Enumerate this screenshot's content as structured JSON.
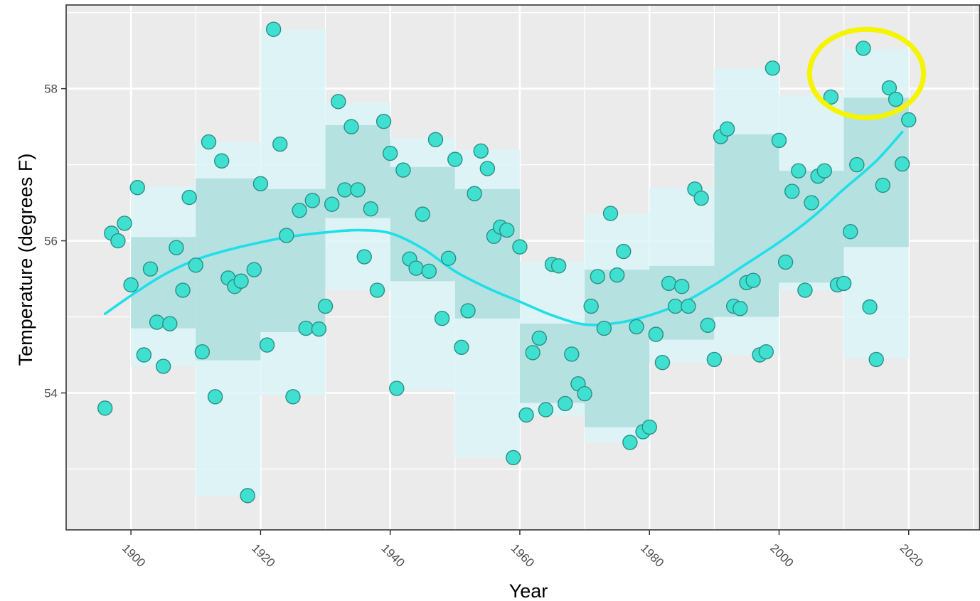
{
  "chart_data": {
    "type": "scatter",
    "xlabel": "Year",
    "ylabel": "Temperature (degrees F)",
    "xlim": [
      1890,
      2031
    ],
    "ylim": [
      52.2,
      59.1
    ],
    "x_ticks": [
      1900,
      1920,
      1940,
      1960,
      1980,
      2000,
      2020
    ],
    "y_ticks": [
      54,
      56,
      58
    ],
    "grid": true,
    "panel_background": "#ebebeb",
    "colors": {
      "points": "#40e0d0",
      "point_outline": "#2a8f87",
      "trend": "#1fdfe8",
      "outer_band": "#dbf5f7",
      "inner_band": "#aedddd",
      "highlight": "#f5f500"
    },
    "decade_bands": [
      {
        "x0": 1900,
        "x1": 1910,
        "outer": [
          54.35,
          56.72
        ],
        "inner": [
          54.85,
          56.05
        ]
      },
      {
        "x0": 1910,
        "x1": 1920,
        "outer": [
          52.65,
          57.3
        ],
        "inner": [
          54.43,
          56.82
        ]
      },
      {
        "x0": 1920,
        "x1": 1930,
        "outer": [
          53.97,
          58.78
        ],
        "inner": [
          54.8,
          56.68
        ]
      },
      {
        "x0": 1930,
        "x1": 1940,
        "outer": [
          55.35,
          57.82
        ],
        "inner": [
          56.3,
          57.52
        ]
      },
      {
        "x0": 1940,
        "x1": 1950,
        "outer": [
          54.05,
          57.35
        ],
        "inner": [
          55.47,
          56.97
        ]
      },
      {
        "x0": 1950,
        "x1": 1960,
        "outer": [
          53.15,
          57.2
        ],
        "inner": [
          54.98,
          56.68
        ]
      },
      {
        "x0": 1960,
        "x1": 1970,
        "outer": [
          53.7,
          55.72
        ],
        "inner": [
          53.87,
          54.91
        ]
      },
      {
        "x0": 1970,
        "x1": 1980,
        "outer": [
          53.35,
          56.35
        ],
        "inner": [
          53.55,
          55.62
        ]
      },
      {
        "x0": 1980,
        "x1": 1990,
        "outer": [
          54.4,
          56.7
        ],
        "inner": [
          54.7,
          55.67
        ]
      },
      {
        "x0": 1990,
        "x1": 2000,
        "outer": [
          54.5,
          58.27
        ],
        "inner": [
          55.0,
          57.4
        ]
      },
      {
        "x0": 2000,
        "x1": 2010,
        "outer": [
          55.35,
          57.92
        ],
        "inner": [
          55.45,
          56.92
        ]
      },
      {
        "x0": 2010,
        "x1": 2020,
        "outer": [
          54.45,
          58.52
        ],
        "inner": [
          55.92,
          57.88
        ]
      }
    ],
    "points": [
      [
        1896,
        53.8
      ],
      [
        1897,
        56.1
      ],
      [
        1898,
        56.0
      ],
      [
        1899,
        56.23
      ],
      [
        1900,
        55.42
      ],
      [
        1901,
        56.7
      ],
      [
        1902,
        54.5
      ],
      [
        1903,
        55.63
      ],
      [
        1904,
        54.93
      ],
      [
        1905,
        54.35
      ],
      [
        1906,
        54.91
      ],
      [
        1907,
        55.91
      ],
      [
        1908,
        55.35
      ],
      [
        1909,
        56.57
      ],
      [
        1910,
        55.68
      ],
      [
        1911,
        54.54
      ],
      [
        1912,
        57.3
      ],
      [
        1913,
        53.95
      ],
      [
        1914,
        57.05
      ],
      [
        1915,
        55.51
      ],
      [
        1916,
        55.4
      ],
      [
        1917,
        55.47
      ],
      [
        1918,
        52.65
      ],
      [
        1919,
        55.62
      ],
      [
        1920,
        56.75
      ],
      [
        1921,
        54.63
      ],
      [
        1922,
        58.78
      ],
      [
        1923,
        57.27
      ],
      [
        1924,
        56.07
      ],
      [
        1925,
        53.95
      ],
      [
        1926,
        56.4
      ],
      [
        1927,
        54.85
      ],
      [
        1928,
        56.53
      ],
      [
        1929,
        54.84
      ],
      [
        1930,
        55.14
      ],
      [
        1931,
        56.48
      ],
      [
        1932,
        57.83
      ],
      [
        1933,
        56.67
      ],
      [
        1934,
        57.5
      ],
      [
        1935,
        56.67
      ],
      [
        1936,
        55.79
      ],
      [
        1937,
        56.42
      ],
      [
        1938,
        55.35
      ],
      [
        1939,
        57.57
      ],
      [
        1940,
        57.15
      ],
      [
        1941,
        54.06
      ],
      [
        1942,
        56.93
      ],
      [
        1943,
        55.76
      ],
      [
        1944,
        55.64
      ],
      [
        1945,
        56.35
      ],
      [
        1946,
        55.6
      ],
      [
        1947,
        57.33
      ],
      [
        1948,
        54.98
      ],
      [
        1949,
        55.77
      ],
      [
        1950,
        57.07
      ],
      [
        1951,
        54.6
      ],
      [
        1952,
        55.08
      ],
      [
        1953,
        56.62
      ],
      [
        1954,
        57.18
      ],
      [
        1955,
        56.95
      ],
      [
        1956,
        56.06
      ],
      [
        1957,
        56.18
      ],
      [
        1958,
        56.14
      ],
      [
        1959,
        53.15
      ],
      [
        1960,
        55.92
      ],
      [
        1961,
        53.71
      ],
      [
        1962,
        54.53
      ],
      [
        1963,
        54.72
      ],
      [
        1964,
        53.78
      ],
      [
        1965,
        55.69
      ],
      [
        1966,
        55.67
      ],
      [
        1967,
        53.86
      ],
      [
        1968,
        54.51
      ],
      [
        1969,
        54.12
      ],
      [
        1970,
        53.99
      ],
      [
        1971,
        55.14
      ],
      [
        1972,
        55.53
      ],
      [
        1973,
        54.85
      ],
      [
        1974,
        56.36
      ],
      [
        1975,
        55.55
      ],
      [
        1976,
        55.86
      ],
      [
        1977,
        53.35
      ],
      [
        1978,
        54.87
      ],
      [
        1979,
        53.49
      ],
      [
        1980,
        53.55
      ],
      [
        1981,
        54.77
      ],
      [
        1982,
        54.4
      ],
      [
        1983,
        55.44
      ],
      [
        1984,
        55.14
      ],
      [
        1985,
        55.4
      ],
      [
        1986,
        55.14
      ],
      [
        1987,
        56.68
      ],
      [
        1988,
        56.56
      ],
      [
        1989,
        54.89
      ],
      [
        1990,
        54.44
      ],
      [
        1991,
        57.37
      ],
      [
        1992,
        57.47
      ],
      [
        1993,
        55.14
      ],
      [
        1994,
        55.11
      ],
      [
        1995,
        55.45
      ],
      [
        1996,
        55.48
      ],
      [
        1997,
        54.5
      ],
      [
        1998,
        54.54
      ],
      [
        1999,
        58.27
      ],
      [
        2000,
        57.32
      ],
      [
        2001,
        55.72
      ],
      [
        2002,
        56.65
      ],
      [
        2003,
        56.92
      ],
      [
        2004,
        55.35
      ],
      [
        2005,
        56.5
      ],
      [
        2006,
        56.85
      ],
      [
        2007,
        56.92
      ],
      [
        2008,
        57.89
      ],
      [
        2009,
        55.42
      ],
      [
        2010,
        55.44
      ],
      [
        2011,
        56.12
      ],
      [
        2012,
        57.0
      ],
      [
        2013,
        58.53
      ],
      [
        2014,
        55.13
      ],
      [
        2015,
        54.44
      ],
      [
        2016,
        56.73
      ],
      [
        2017,
        58.01
      ],
      [
        2018,
        57.86
      ],
      [
        2019,
        57.01
      ],
      [
        2020,
        57.59
      ]
    ],
    "trend": [
      [
        1896,
        55.04
      ],
      [
        1900,
        55.28
      ],
      [
        1905,
        55.55
      ],
      [
        1910,
        55.75
      ],
      [
        1915,
        55.88
      ],
      [
        1920,
        55.98
      ],
      [
        1925,
        56.06
      ],
      [
        1930,
        56.11
      ],
      [
        1935,
        56.14
      ],
      [
        1940,
        56.1
      ],
      [
        1945,
        55.9
      ],
      [
        1950,
        55.6
      ],
      [
        1955,
        55.38
      ],
      [
        1960,
        55.2
      ],
      [
        1965,
        55.02
      ],
      [
        1970,
        54.9
      ],
      [
        1975,
        54.92
      ],
      [
        1980,
        55.02
      ],
      [
        1985,
        55.18
      ],
      [
        1990,
        55.42
      ],
      [
        1995,
        55.7
      ],
      [
        2000,
        55.98
      ],
      [
        2005,
        56.3
      ],
      [
        2010,
        56.68
      ],
      [
        2015,
        57.05
      ],
      [
        2019,
        57.43
      ]
    ],
    "highlight_ellipse": {
      "cx": 2013.5,
      "cy": 58.2,
      "rx_years": 8.8,
      "ry_degrees": 0.58
    }
  }
}
